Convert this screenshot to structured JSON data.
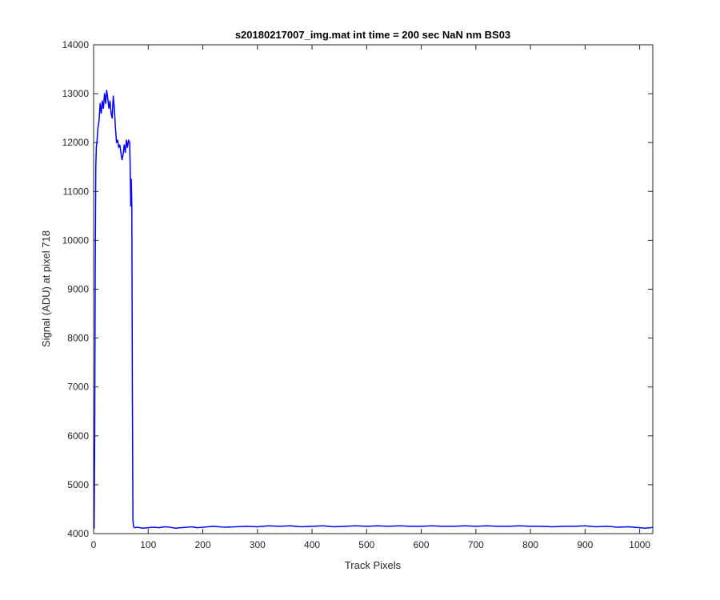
{
  "chart_data": {
    "type": "line",
    "title": "s20180217007_img.mat int time = 200 sec  NaN nm BS03",
    "xlabel": "Track Pixels",
    "ylabel": "Signal (ADU) at pixel 718",
    "xlim": [
      0,
      1024
    ],
    "ylim": [
      4000,
      14000
    ],
    "xticks": [
      0,
      100,
      200,
      300,
      400,
      500,
      600,
      700,
      800,
      900,
      1000
    ],
    "yticks": [
      4000,
      5000,
      6000,
      7000,
      8000,
      9000,
      10000,
      11000,
      12000,
      13000,
      14000
    ],
    "grid": false,
    "line_color": "#0000ff",
    "series": [
      {
        "x": [
          1,
          2,
          3,
          4,
          5,
          6,
          8,
          10,
          12,
          14,
          16,
          18,
          20,
          22,
          24,
          26,
          28,
          30,
          32,
          34,
          36,
          38,
          40,
          42,
          44,
          46,
          48,
          50,
          52,
          54,
          56,
          58,
          60,
          62,
          64,
          66,
          67,
          68,
          69,
          70,
          71,
          72,
          73,
          75,
          80,
          90,
          100,
          110,
          120,
          130,
          140,
          150,
          160,
          170,
          180,
          190,
          200,
          220,
          240,
          260,
          280,
          300,
          320,
          340,
          360,
          380,
          400,
          420,
          440,
          460,
          480,
          500,
          520,
          540,
          560,
          580,
          600,
          620,
          640,
          660,
          680,
          700,
          720,
          740,
          760,
          780,
          800,
          820,
          840,
          860,
          880,
          900,
          920,
          940,
          960,
          980,
          1000,
          1010,
          1020,
          1024
        ],
        "y": [
          4100,
          6000,
          9500,
          11500,
          11900,
          12000,
          12300,
          12450,
          12800,
          12600,
          12850,
          12700,
          13000,
          12800,
          13070,
          12900,
          12700,
          12850,
          12600,
          12500,
          12950,
          12700,
          12300,
          12000,
          12050,
          11900,
          11950,
          11800,
          11650,
          11750,
          11950,
          11800,
          12050,
          11900,
          12050,
          12000,
          11500,
          10700,
          11250,
          10700,
          7000,
          4300,
          4150,
          4120,
          4130,
          4110,
          4120,
          4130,
          4120,
          4140,
          4130,
          4110,
          4120,
          4130,
          4140,
          4120,
          4130,
          4150,
          4130,
          4140,
          4150,
          4140,
          4160,
          4150,
          4160,
          4140,
          4150,
          4160,
          4140,
          4150,
          4160,
          4150,
          4160,
          4150,
          4160,
          4150,
          4150,
          4160,
          4150,
          4150,
          4160,
          4150,
          4160,
          4150,
          4150,
          4160,
          4150,
          4150,
          4140,
          4150,
          4150,
          4160,
          4140,
          4150,
          4130,
          4140,
          4120,
          4110,
          4120,
          4130
        ]
      }
    ]
  }
}
